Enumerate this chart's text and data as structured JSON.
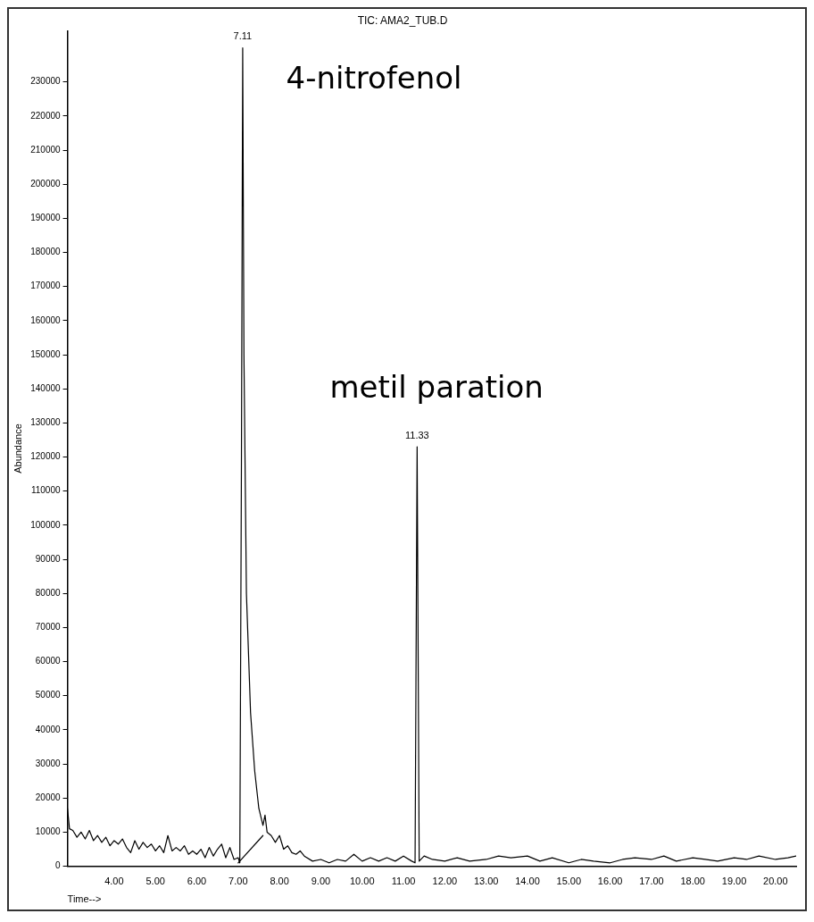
{
  "chart_data": {
    "type": "line",
    "title": "TIC: AMA2_TUB.D",
    "xlabel": "Time-->",
    "ylabel": "Abundance",
    "xlim": [
      2.87,
      20.5
    ],
    "ylim": [
      0,
      245000
    ],
    "xticks": [
      {
        "value": 4,
        "label": "4.00"
      },
      {
        "value": 5,
        "label": "5.00"
      },
      {
        "value": 6,
        "label": "6.00"
      },
      {
        "value": 7,
        "label": "7.00"
      },
      {
        "value": 8,
        "label": "8.00"
      },
      {
        "value": 9,
        "label": "9.00"
      },
      {
        "value": 10,
        "label": "10.00"
      },
      {
        "value": 11,
        "label": "11.00"
      },
      {
        "value": 12,
        "label": "12.00"
      },
      {
        "value": 13,
        "label": "13.00"
      },
      {
        "value": 14,
        "label": "14.00"
      },
      {
        "value": 15,
        "label": "15.00"
      },
      {
        "value": 16,
        "label": "16.00"
      },
      {
        "value": 17,
        "label": "17.00"
      },
      {
        "value": 18,
        "label": "18.00"
      },
      {
        "value": 19,
        "label": "19.00"
      },
      {
        "value": 20,
        "label": "20.00"
      }
    ],
    "yticks": [
      0,
      10000,
      20000,
      30000,
      40000,
      50000,
      60000,
      70000,
      80000,
      90000,
      100000,
      110000,
      120000,
      130000,
      140000,
      150000,
      160000,
      170000,
      180000,
      190000,
      200000,
      210000,
      220000,
      230000
    ],
    "grid": false,
    "legend": false,
    "marker": "none",
    "line_style": "solid",
    "series": [
      {
        "color": "#000000",
        "x": [
          2.87,
          2.92,
          3.0,
          3.1,
          3.2,
          3.3,
          3.4,
          3.5,
          3.6,
          3.7,
          3.8,
          3.9,
          4.0,
          4.1,
          4.2,
          4.3,
          4.4,
          4.5,
          4.6,
          4.7,
          4.8,
          4.9,
          5.0,
          5.1,
          5.2,
          5.3,
          5.4,
          5.5,
          5.6,
          5.7,
          5.8,
          5.9,
          6.0,
          6.1,
          6.2,
          6.3,
          6.4,
          6.5,
          6.6,
          6.7,
          6.8,
          6.9,
          7.0,
          7.04,
          7.08,
          7.11,
          7.14,
          7.2,
          7.3,
          7.4,
          7.5,
          7.6,
          7.65,
          7.7,
          7.8,
          7.9,
          8.0,
          8.1,
          8.2,
          8.3,
          8.4,
          8.5,
          8.6,
          8.8,
          9.0,
          9.2,
          9.4,
          9.6,
          9.8,
          10.0,
          10.2,
          10.4,
          10.6,
          10.8,
          11.0,
          11.2,
          11.28,
          11.33,
          11.38,
          11.5,
          11.7,
          12.0,
          12.3,
          12.6,
          13.0,
          13.3,
          13.6,
          14.0,
          14.3,
          14.6,
          15.0,
          15.3,
          15.6,
          16.0,
          16.3,
          16.6,
          17.0,
          17.3,
          17.6,
          18.0,
          18.3,
          18.6,
          19.0,
          19.3,
          19.6,
          20.0,
          20.3,
          20.5
        ],
        "values": [
          17000,
          11000,
          10500,
          8500,
          10000,
          8000,
          10500,
          7500,
          9000,
          7000,
          8500,
          6000,
          7500,
          6500,
          8000,
          5500,
          4000,
          7500,
          5000,
          7000,
          5500,
          6500,
          4500,
          6000,
          4000,
          9000,
          4500,
          5500,
          4500,
          6000,
          3500,
          4500,
          3500,
          5000,
          2500,
          5500,
          3000,
          5000,
          6500,
          2500,
          5500,
          2000,
          2500,
          1000,
          120000,
          240000,
          150000,
          80000,
          45000,
          28000,
          17000,
          12000,
          15000,
          10000,
          9000,
          7000,
          9000,
          5000,
          6000,
          4000,
          3500,
          4500,
          3000,
          1500,
          2000,
          1000,
          2000,
          1500,
          3500,
          1500,
          2500,
          1500,
          2500,
          1500,
          3000,
          1500,
          1000,
          123000,
          1500,
          3000,
          2000,
          1500,
          2500,
          1500,
          2000,
          3000,
          2500,
          3000,
          1500,
          2500,
          1000,
          2000,
          1500,
          1000,
          2000,
          2500,
          2000,
          3000,
          1500,
          2500,
          2000,
          1500,
          2500,
          2000,
          3000,
          2000,
          2500,
          3000
        ]
      },
      {
        "color": "#000000",
        "x": [
          7.0,
          7.6
        ],
        "values": [
          1000,
          9000
        ]
      }
    ],
    "annotations": [
      {
        "text": "7.11",
        "x": 7.11,
        "y": 240000
      },
      {
        "text": "11.33",
        "x": 11.33,
        "y": 123000
      },
      "4-nitrofenol",
      "metil paration"
    ]
  }
}
